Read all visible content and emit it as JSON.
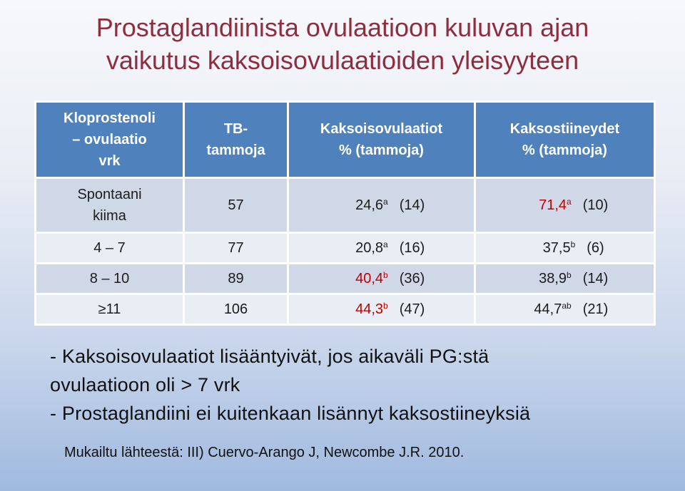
{
  "title": {
    "line1": "Prostaglandiinista ovulaatioon kuluvan ajan",
    "line2": "vaikutus kaksoisovulaatioiden yleisyyteen"
  },
  "table": {
    "headers": {
      "c1": [
        "Kloprostenoli",
        "– ovulaatio",
        "vrk"
      ],
      "c2": [
        "TB-",
        "tammoja"
      ],
      "c3": [
        "Kaksoisovulaatiot",
        "% (tammoja)"
      ],
      "c4": [
        "Kaksostiineydet",
        "% (tammoja)"
      ]
    },
    "rows": [
      {
        "label": [
          "Spontaani",
          "kiima"
        ],
        "n": "57",
        "twin_ov": {
          "value": "24,6",
          "sup": "a",
          "count": "(14)"
        },
        "twin_preg": {
          "value": "71,4",
          "sup": "a",
          "count": "(10)"
        }
      },
      {
        "label": [
          "4 – 7"
        ],
        "n": "77",
        "twin_ov": {
          "value": "20,8",
          "sup": "a",
          "count": "(16)"
        },
        "twin_preg": {
          "value": "37,5",
          "sup": "b",
          "count": "(6)"
        }
      },
      {
        "label": [
          "8 – 10"
        ],
        "n": "89",
        "twin_ov": {
          "value": "40,4",
          "sup": "b",
          "count": "(36)"
        },
        "twin_preg": {
          "value": "38,9",
          "sup": "b",
          "count": "(14)"
        }
      },
      {
        "label": [
          "≥11"
        ],
        "n": "106",
        "twin_ov": {
          "value": "44,3",
          "sup": "b",
          "count": "(47)"
        },
        "twin_preg": {
          "value": "44,7",
          "sup": "ab",
          "count": "(21)"
        }
      }
    ]
  },
  "notes": {
    "line1": "- Kaksoisovulaatiot lisääntyivät, jos aikaväli PG:stä",
    "line2": "ovulaatioon oli > 7 vrk",
    "line3": "- Prostaglandiini ei kuitenkaan lisännyt kaksostiineyksiä"
  },
  "source": "Mukailtu lähteestä: III) Cuervo-Arango J, Newcombe J.R. 2010.",
  "colors": {
    "title": "#8e2d3f",
    "header_bg": "#4f81bd",
    "row_dark": "#d0d8e8",
    "row_light": "#e9edf4",
    "highlight": "#c00000"
  }
}
